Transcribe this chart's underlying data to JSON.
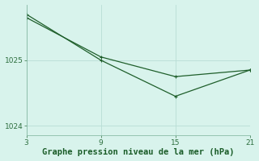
{
  "line1": {
    "x": [
      3,
      9,
      15,
      21
    ],
    "y": [
      1025.65,
      1025.05,
      1024.75,
      1024.85
    ],
    "color": "#1e5e2a",
    "linewidth": 0.9,
    "markersize": 2.5
  },
  "line2": {
    "x": [
      3,
      9,
      15,
      21
    ],
    "y": [
      1025.7,
      1025.0,
      1024.45,
      1024.85
    ],
    "color": "#1e5e2a",
    "linewidth": 0.9,
    "markersize": 2.5
  },
  "xlim": [
    3,
    21
  ],
  "ylim": [
    1023.85,
    1025.85
  ],
  "xticks": [
    3,
    9,
    15,
    21
  ],
  "yticks": [
    1024,
    1025
  ],
  "xlabel": "Graphe pression niveau de la mer (hPa)",
  "xlabel_fontsize": 7.5,
  "xlabel_color": "#1a5c28",
  "tick_fontsize": 6.5,
  "tick_color": "#2d6e3e",
  "background_color": "#d8f3ec",
  "grid_color": "#b8ddd5",
  "figure_bg": "#d8f3ec",
  "spine_color": "#7ab09a"
}
